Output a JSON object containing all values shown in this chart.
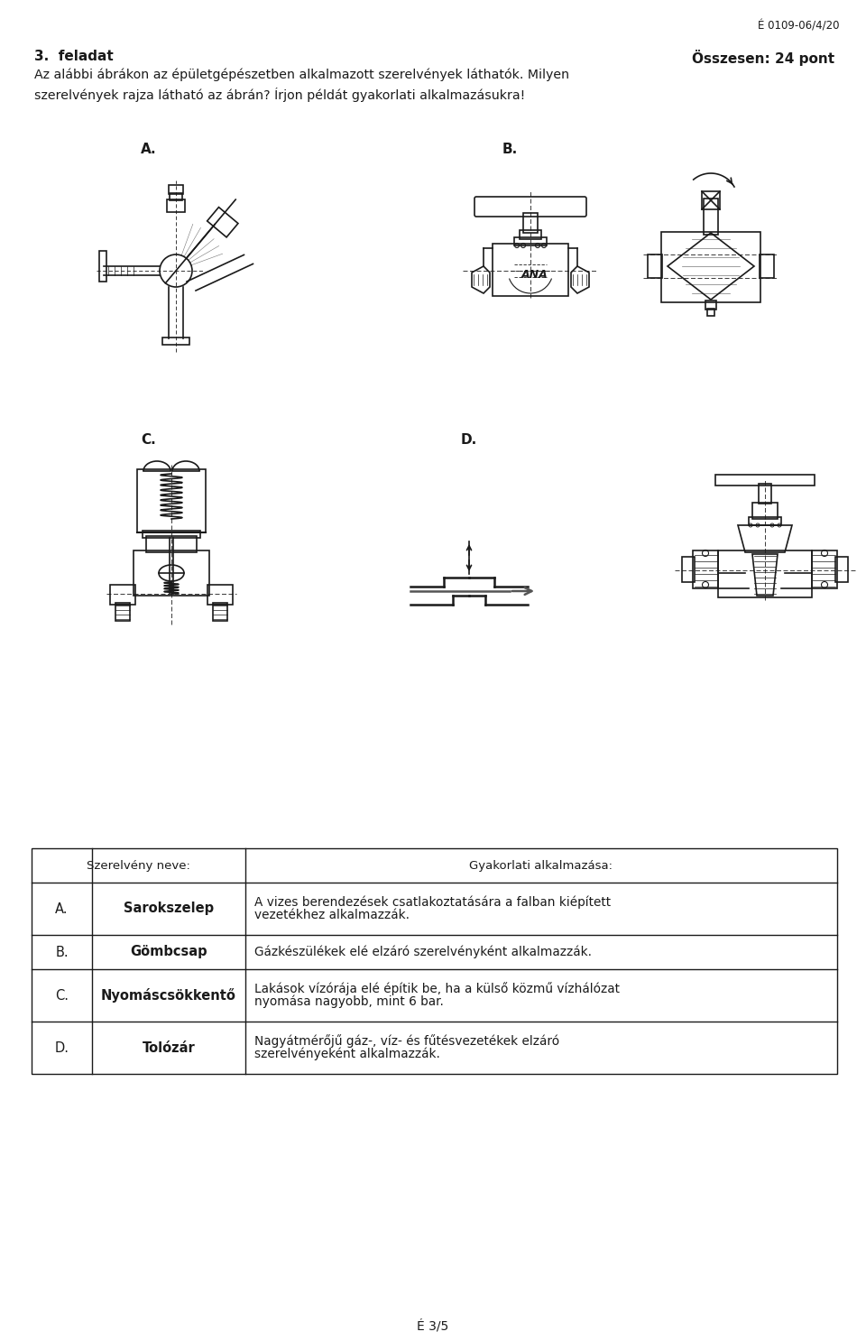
{
  "page_id": "É 0109-06/4/20",
  "page_num": "É 3/5",
  "title_num": "3.",
  "title_text": "feladat",
  "title_right": "Összesen: 24 pont",
  "body_line1": "Az alábbi ábrákon az épületgépészetben alkalmazott szerelvények láthatók. Milyen",
  "body_line2": "szerelvények rajza látható az ábrán? Írjon példát gyakorlati alkalmazásukra!",
  "label_A": "A.",
  "label_B": "B.",
  "label_C": "C.",
  "label_D": "D.",
  "table_header_col1": "Szerelvény neve:",
  "table_header_col2": "Gyakorlati alkalmazása:",
  "row_A_letter": "A.",
  "row_A_name": "Sarokszelep",
  "row_A_desc1": "A vizes berendezések csatlakoztatására a falban kiépített",
  "row_A_desc2": "vezetékhez alkalmazzák.",
  "row_B_letter": "B.",
  "row_B_name": "Gömbcsap",
  "row_B_desc1": "Gázkészülékek elé elzáró szerelvényként alkalmazzák.",
  "row_C_letter": "C.",
  "row_C_name": "Nyomáscsökkentő",
  "row_C_desc1": "Lakások vízórája elé építik be, ha a külső közmű vízhálózat",
  "row_C_desc2": "nyomása nagyobb, mint 6 bar.",
  "row_D_letter": "D.",
  "row_D_name": "Tolózár",
  "row_D_desc1": "Nagyátmérőjű gáz-, víz- és fűtésvezetékek elzáró",
  "row_D_desc2": "szerelvényeként alkalmazzák.",
  "bg_color": "#ffffff",
  "text_color": "#1a1a1a",
  "line_color": "#1a1a1a"
}
